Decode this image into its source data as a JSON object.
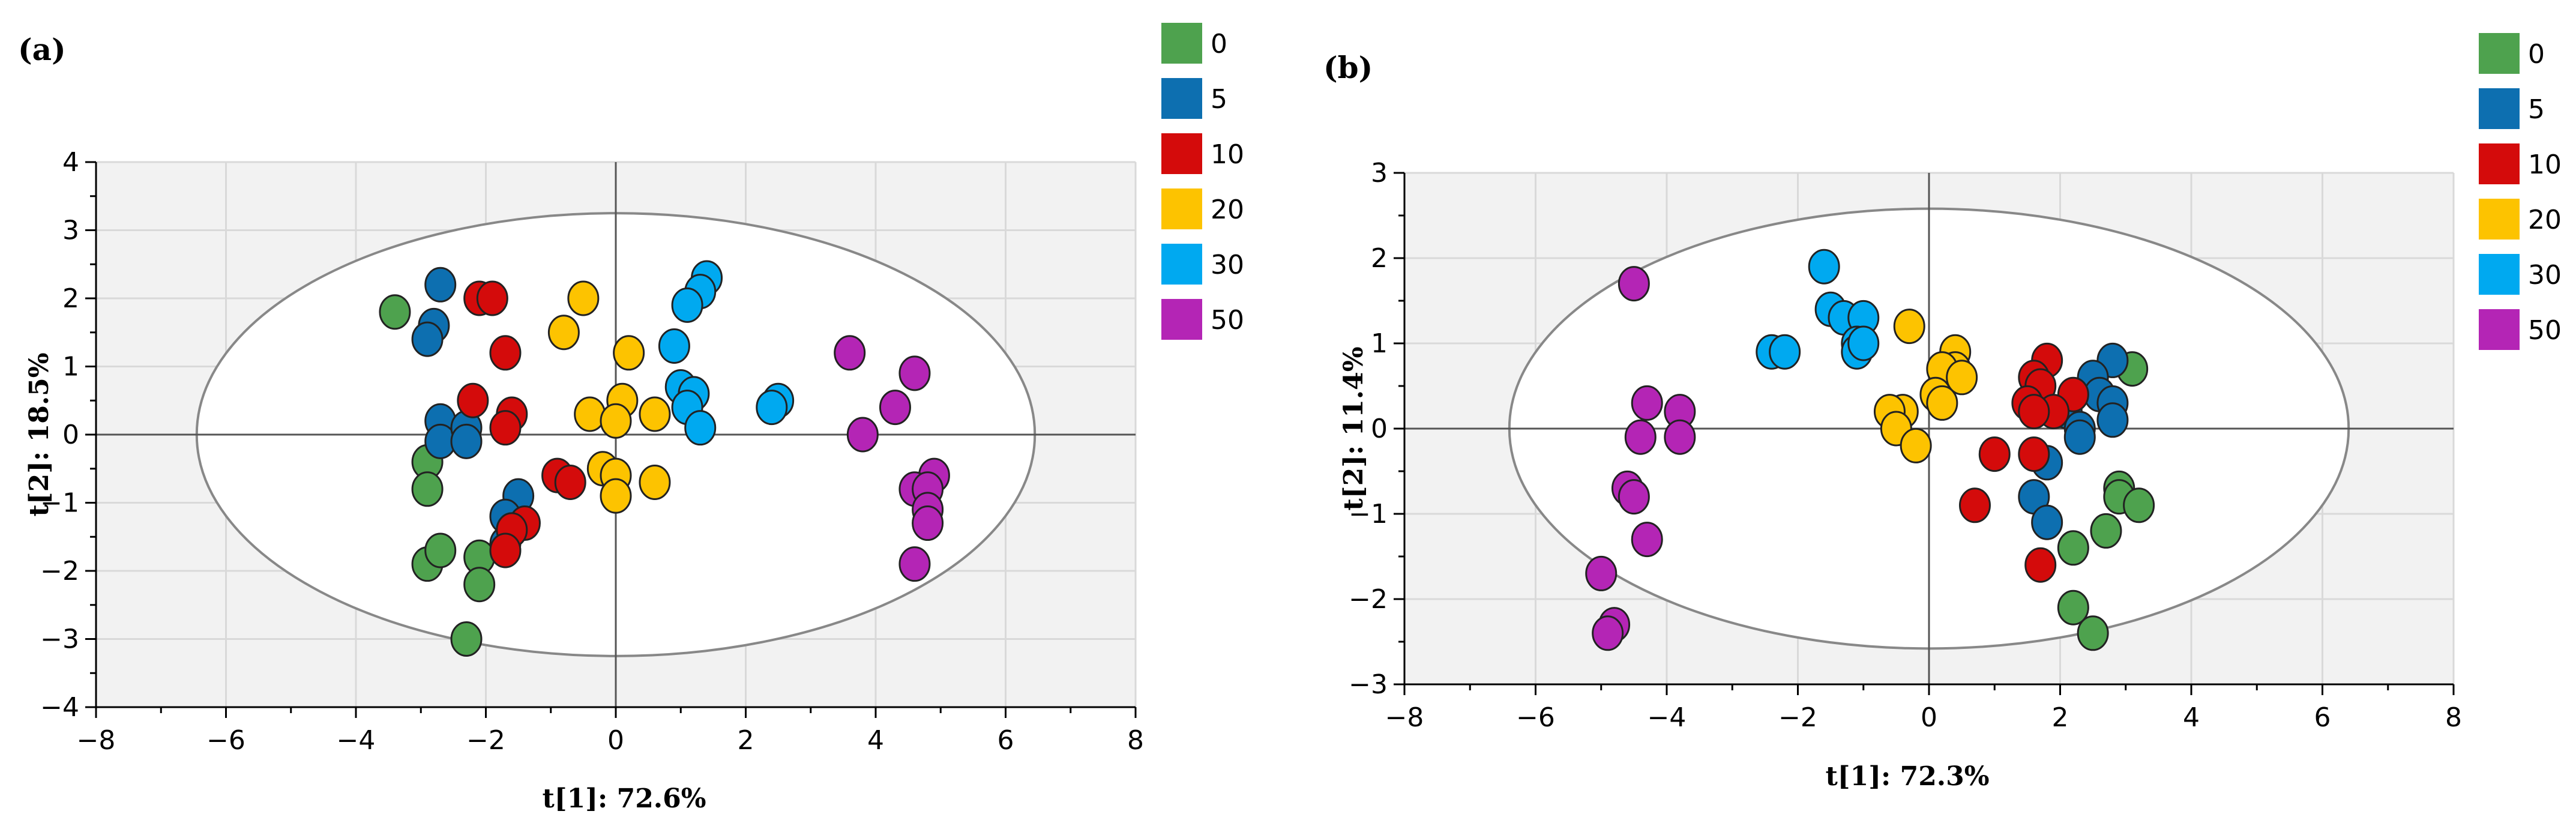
{
  "chart_data": [
    {
      "type": "scatter",
      "panel_label": "(a)",
      "xlabel": "t[1]: 72.6%",
      "ylabel": "t[2]: 18.5%",
      "xlim": [
        -8,
        8
      ],
      "ylim": [
        -4,
        4
      ],
      "xticks": [
        -8,
        -6,
        -4,
        -2,
        0,
        2,
        4,
        6,
        8
      ],
      "yticks": [
        -4,
        -3,
        -2,
        -1,
        0,
        1,
        2,
        3,
        4
      ],
      "ellipse": {
        "rx": 6.45,
        "ry": 3.25
      },
      "legend": [
        "0",
        "5",
        "10",
        "20",
        "30",
        "50"
      ],
      "series": [
        {
          "name": "0",
          "color": "#4ea24e",
          "points": [
            [
              -3.4,
              1.8
            ],
            [
              -2.9,
              -0.4
            ],
            [
              -2.9,
              -0.8
            ],
            [
              -2.9,
              -1.9
            ],
            [
              -2.7,
              -1.7
            ],
            [
              -2.1,
              -1.8
            ],
            [
              -2.1,
              -2.2
            ],
            [
              -2.3,
              -3.0
            ]
          ]
        },
        {
          "name": "5",
          "color": "#0d6fb0",
          "points": [
            [
              -2.7,
              2.2
            ],
            [
              -2.8,
              1.6
            ],
            [
              -2.9,
              1.4
            ],
            [
              -2.7,
              0.2
            ],
            [
              -2.7,
              -0.1
            ],
            [
              -2.3,
              0.1
            ],
            [
              -2.3,
              -0.1
            ],
            [
              -1.5,
              -0.9
            ],
            [
              -1.7,
              -1.2
            ],
            [
              -1.6,
              -1.4
            ],
            [
              -1.7,
              -1.6
            ]
          ]
        },
        {
          "name": "10",
          "color": "#d40b0b",
          "points": [
            [
              -2.1,
              2.0
            ],
            [
              -1.9,
              2.0
            ],
            [
              -1.7,
              1.2
            ],
            [
              -2.2,
              0.5
            ],
            [
              -1.6,
              0.3
            ],
            [
              -1.7,
              0.1
            ],
            [
              -0.9,
              -0.6
            ],
            [
              -0.7,
              -0.7
            ],
            [
              -1.4,
              -1.3
            ],
            [
              -1.6,
              -1.4
            ],
            [
              -1.7,
              -1.7
            ]
          ]
        },
        {
          "name": "20",
          "color": "#fdc300",
          "points": [
            [
              -0.5,
              2.0
            ],
            [
              -0.8,
              1.5
            ],
            [
              0.2,
              1.2
            ],
            [
              -0.4,
              0.3
            ],
            [
              0.1,
              0.5
            ],
            [
              0.0,
              0.2
            ],
            [
              0.6,
              0.3
            ],
            [
              -0.2,
              -0.5
            ],
            [
              0.0,
              -0.6
            ],
            [
              0.0,
              -0.9
            ],
            [
              0.6,
              -0.7
            ]
          ]
        },
        {
          "name": "30",
          "color": "#00a9f0",
          "points": [
            [
              1.4,
              2.3
            ],
            [
              1.3,
              2.1
            ],
            [
              1.1,
              1.9
            ],
            [
              0.9,
              1.3
            ],
            [
              1.0,
              0.7
            ],
            [
              1.2,
              0.6
            ],
            [
              1.1,
              0.4
            ],
            [
              1.3,
              0.1
            ],
            [
              2.5,
              0.5
            ],
            [
              2.4,
              0.4
            ]
          ]
        },
        {
          "name": "50",
          "color": "#b425b5",
          "points": [
            [
              3.6,
              1.2
            ],
            [
              4.6,
              0.9
            ],
            [
              4.3,
              0.4
            ],
            [
              3.8,
              0.0
            ],
            [
              4.9,
              -0.6
            ],
            [
              4.6,
              -0.8
            ],
            [
              4.8,
              -0.8
            ],
            [
              4.8,
              -1.1
            ],
            [
              4.8,
              -1.3
            ],
            [
              4.6,
              -1.9
            ]
          ]
        }
      ]
    },
    {
      "type": "scatter",
      "panel_label": "(b)",
      "xlabel": "t[1]: 72.3%",
      "ylabel": "t[2]: 11.4%",
      "xlim": [
        -8,
        8
      ],
      "ylim": [
        -3,
        3
      ],
      "xticks": [
        -8,
        -6,
        -4,
        -2,
        0,
        2,
        4,
        6,
        8
      ],
      "yticks": [
        -3,
        -2,
        -1,
        0,
        1,
        2,
        3
      ],
      "ellipse": {
        "rx": 6.4,
        "ry": 2.58
      },
      "legend": [
        "0",
        "5",
        "10",
        "20",
        "30",
        "50"
      ],
      "series": [
        {
          "name": "0",
          "color": "#4ea24e",
          "points": [
            [
              3.1,
              0.7
            ],
            [
              2.9,
              -0.7
            ],
            [
              2.9,
              -0.8
            ],
            [
              3.2,
              -0.9
            ],
            [
              2.7,
              -1.2
            ],
            [
              2.2,
              -1.4
            ],
            [
              2.2,
              -2.1
            ],
            [
              2.5,
              -2.4
            ]
          ]
        },
        {
          "name": "5",
          "color": "#0d6fb0",
          "points": [
            [
              2.8,
              0.8
            ],
            [
              2.5,
              0.6
            ],
            [
              2.6,
              0.4
            ],
            [
              2.8,
              0.3
            ],
            [
              2.1,
              0.2
            ],
            [
              2.8,
              0.1
            ],
            [
              2.3,
              0.0
            ],
            [
              2.3,
              -0.1
            ],
            [
              1.8,
              -0.4
            ],
            [
              1.6,
              -0.8
            ],
            [
              1.8,
              -1.1
            ]
          ]
        },
        {
          "name": "10",
          "color": "#d40b0b",
          "points": [
            [
              1.8,
              0.8
            ],
            [
              1.6,
              0.6
            ],
            [
              1.7,
              0.5
            ],
            [
              2.2,
              0.4
            ],
            [
              1.5,
              0.3
            ],
            [
              1.9,
              0.2
            ],
            [
              1.6,
              0.2
            ],
            [
              1.0,
              -0.3
            ],
            [
              1.6,
              -0.3
            ],
            [
              0.7,
              -0.9
            ],
            [
              1.7,
              -1.6
            ]
          ]
        },
        {
          "name": "20",
          "color": "#fdc300",
          "points": [
            [
              -0.3,
              1.2
            ],
            [
              0.4,
              0.9
            ],
            [
              0.4,
              0.7
            ],
            [
              0.2,
              0.7
            ],
            [
              0.5,
              0.6
            ],
            [
              0.1,
              0.4
            ],
            [
              0.2,
              0.3
            ],
            [
              -0.4,
              0.2
            ],
            [
              -0.6,
              0.2
            ],
            [
              -0.5,
              0.0
            ],
            [
              -0.2,
              -0.2
            ]
          ]
        },
        {
          "name": "30",
          "color": "#00a9f0",
          "points": [
            [
              -1.6,
              1.9
            ],
            [
              -1.5,
              1.4
            ],
            [
              -1.3,
              1.3
            ],
            [
              -1.0,
              1.3
            ],
            [
              -1.1,
              1.0
            ],
            [
              -1.1,
              0.9
            ],
            [
              -1.0,
              1.0
            ],
            [
              -2.4,
              0.9
            ],
            [
              -2.2,
              0.9
            ]
          ]
        },
        {
          "name": "50",
          "color": "#b425b5",
          "points": [
            [
              -4.5,
              1.7
            ],
            [
              -4.3,
              0.3
            ],
            [
              -3.8,
              0.2
            ],
            [
              -4.4,
              -0.1
            ],
            [
              -3.8,
              -0.1
            ],
            [
              -4.6,
              -0.7
            ],
            [
              -4.5,
              -0.8
            ],
            [
              -4.3,
              -1.3
            ],
            [
              -5.0,
              -1.7
            ],
            [
              -4.8,
              -2.3
            ],
            [
              -4.9,
              -2.4
            ]
          ]
        }
      ]
    }
  ]
}
